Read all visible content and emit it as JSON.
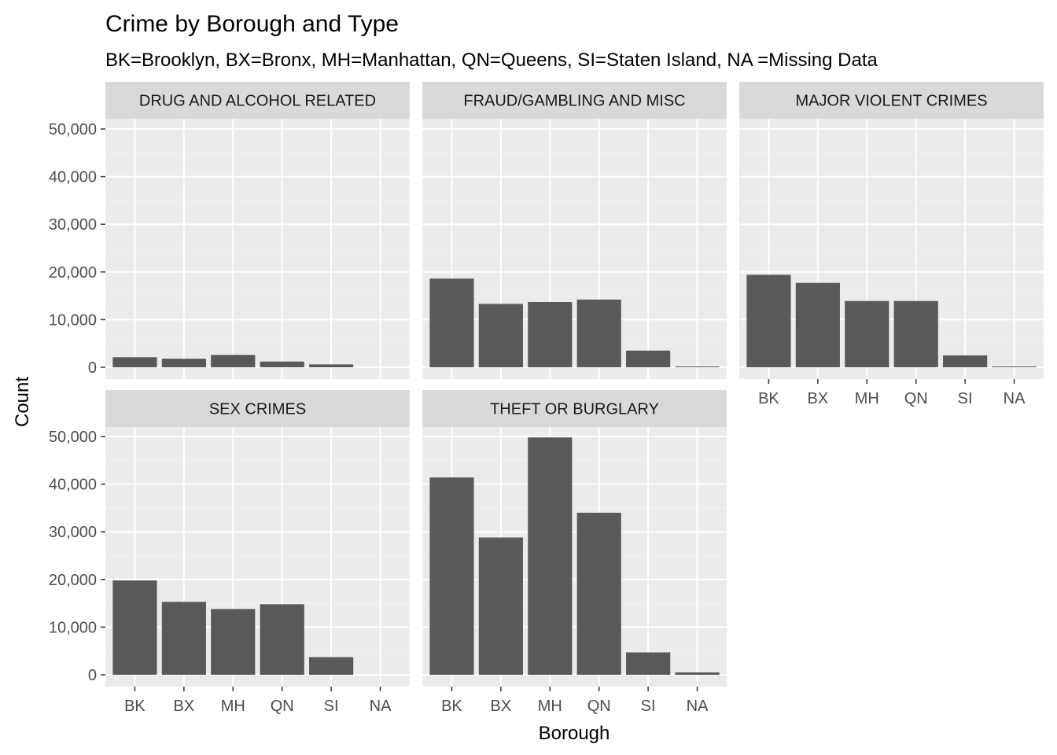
{
  "chart_data": {
    "type": "bar",
    "title": "Crime by Borough and Type",
    "subtitle": "BK=Brooklyn, BX=Bronx, MH=Manhattan, QN=Queens, SI=Staten Island, NA =Missing Data",
    "xlabel": "Borough",
    "ylabel": "Count",
    "categories": [
      "BK",
      "BX",
      "MH",
      "QN",
      "SI",
      "NA"
    ],
    "ylim": [
      0,
      52500
    ],
    "yticks": [
      0,
      10000,
      20000,
      30000,
      40000,
      50000
    ],
    "ytick_labels": [
      "0",
      "10,000",
      "20,000",
      "30,000",
      "40,000",
      "50,000"
    ],
    "grid": true,
    "colors": {
      "bar": "#595959",
      "panel_bg": "#ebebeb",
      "strip_bg": "#d9d9d9",
      "grid_major": "#ffffff",
      "grid_minor": "#f2f2f2"
    },
    "facets": [
      {
        "name": "DRUG AND ALCOHOL RELATED",
        "values": [
          2100,
          1800,
          2600,
          1200,
          600,
          0
        ]
      },
      {
        "name": "FRAUD/GAMBLING AND MISC",
        "values": [
          18600,
          13300,
          13700,
          14200,
          3500,
          100
        ]
      },
      {
        "name": "MAJOR VIOLENT CRIMES",
        "values": [
          19400,
          17700,
          13900,
          13900,
          2500,
          100
        ]
      },
      {
        "name": "SEX CRIMES",
        "values": [
          19800,
          15300,
          13800,
          14800,
          3700,
          0
        ]
      },
      {
        "name": "THEFT OR BURGLARY",
        "values": [
          41400,
          28800,
          49800,
          34000,
          4700,
          500
        ]
      }
    ]
  }
}
